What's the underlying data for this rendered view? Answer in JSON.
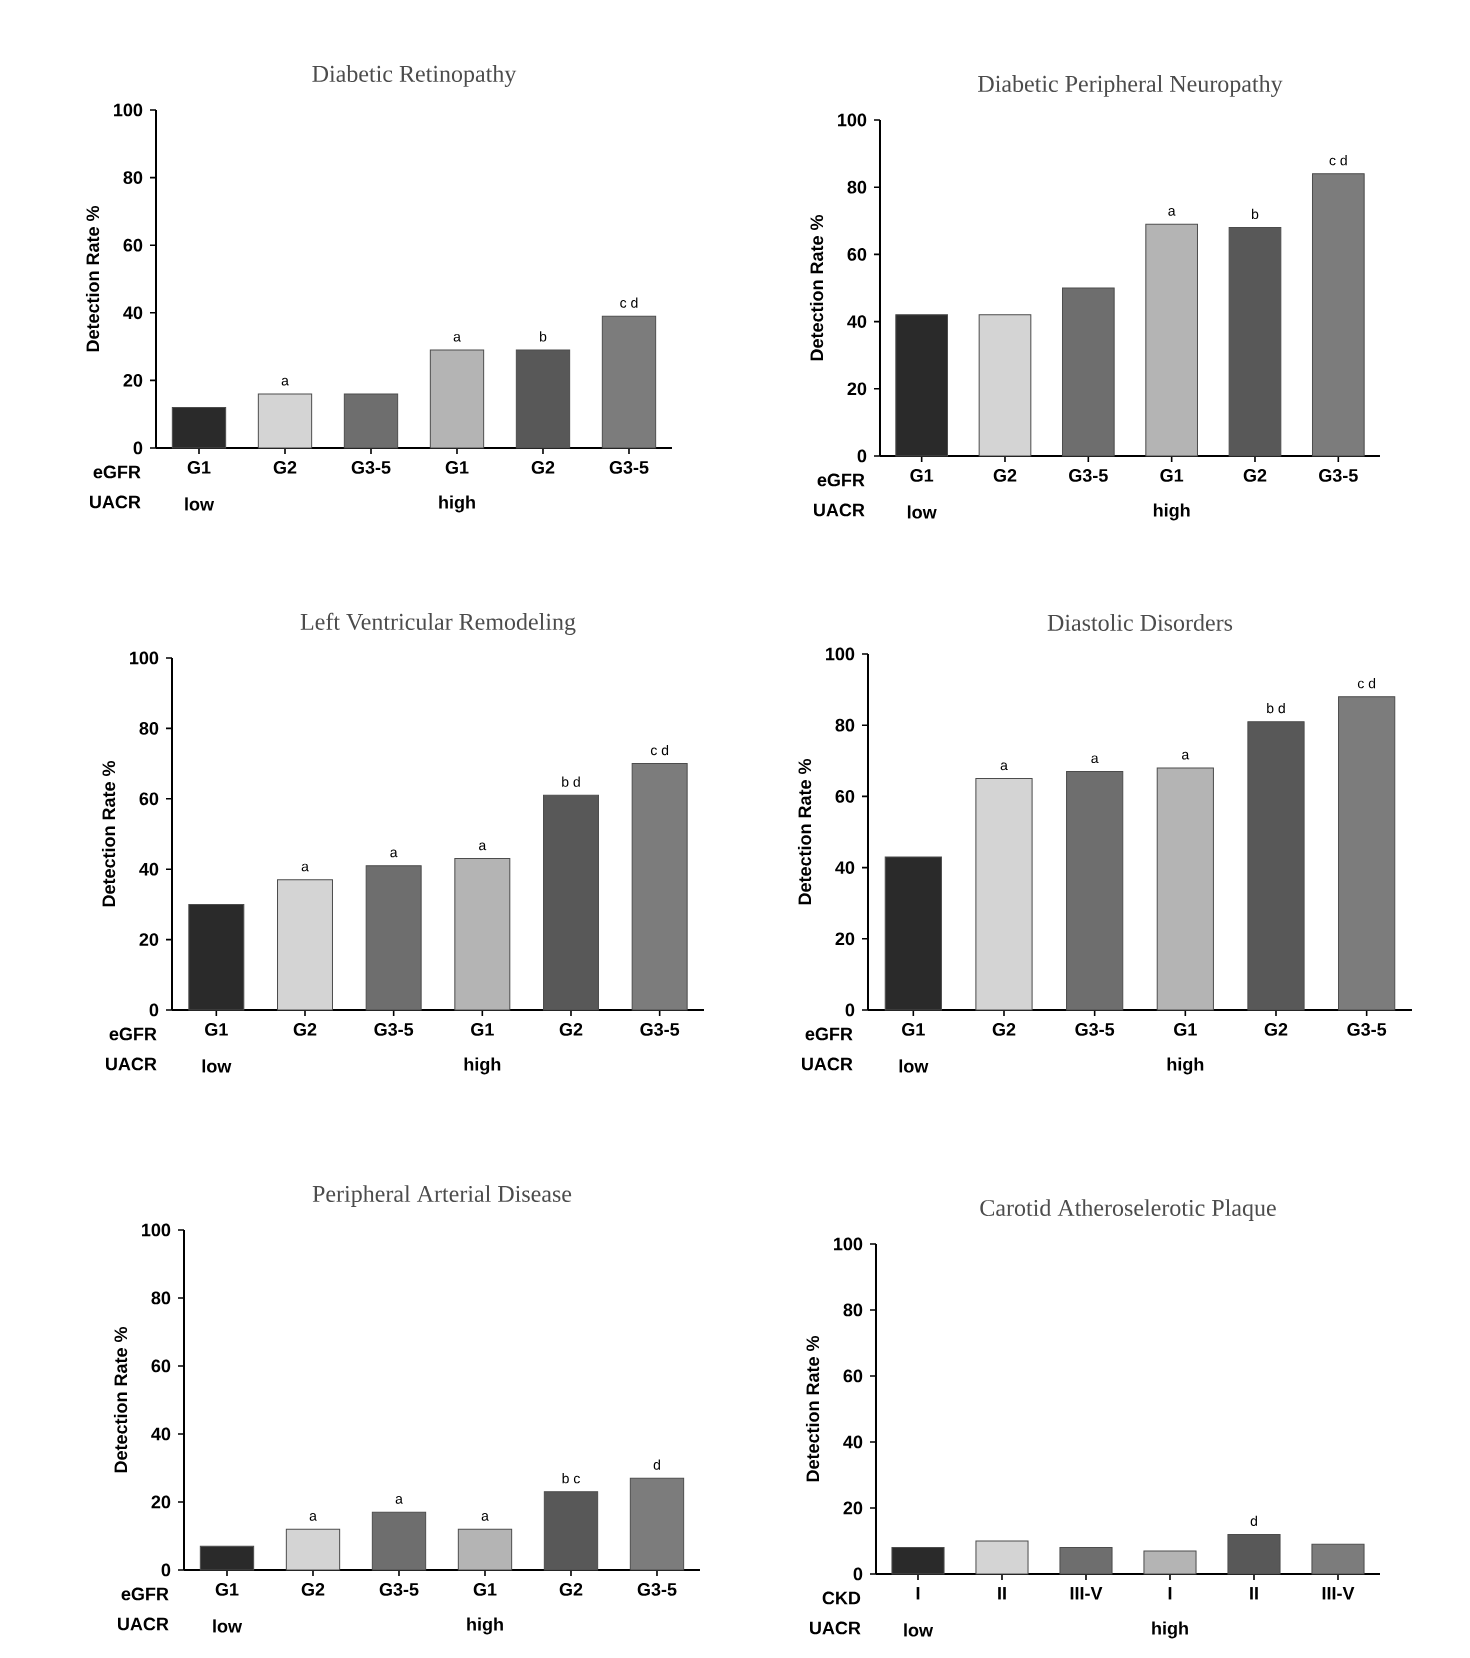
{
  "chart_data": [
    {
      "type": "bar",
      "title": "Diabetic Retinopathy",
      "xlabel": "eGFR",
      "ylabel": "Detection Rate %",
      "categories": [
        "G1",
        "G2",
        "G3-5",
        "G1",
        "G2",
        "G3-5"
      ],
      "values": [
        12,
        16,
        16,
        29,
        29,
        39
      ],
      "value_labels": [
        null,
        "a",
        null,
        "a",
        "b",
        "c d"
      ],
      "colors": [
        "#2a2a2a",
        "#d4d4d4",
        "#6e6e6e",
        "#b4b4b4",
        "#585858",
        "#7c7c7c"
      ],
      "ylim": [
        0,
        100
      ],
      "yticks": [
        0,
        20,
        40,
        60,
        80,
        100
      ],
      "annotations": [
        "UACR",
        "low",
        "high"
      ]
    },
    {
      "type": "bar",
      "title": "Diabetic Peripheral Neuropathy",
      "xlabel": "eGFR",
      "ylabel": "Detection Rate %",
      "categories": [
        "G1",
        "G2",
        "G3-5",
        "G1",
        "G2",
        "G3-5"
      ],
      "values": [
        42,
        42,
        50,
        69,
        68,
        84
      ],
      "value_labels": [
        null,
        null,
        null,
        "a",
        "b",
        "c d"
      ],
      "colors": [
        "#2a2a2a",
        "#d4d4d4",
        "#6e6e6e",
        "#b4b4b4",
        "#585858",
        "#7c7c7c"
      ],
      "ylim": [
        0,
        100
      ],
      "yticks": [
        0,
        20,
        40,
        60,
        80,
        100
      ],
      "annotations": [
        "UACR",
        "low",
        "high"
      ]
    },
    {
      "type": "bar",
      "title": "Left Ventricular Remodeling",
      "xlabel": "eGFR",
      "ylabel": "Detection Rate %",
      "categories": [
        "G1",
        "G2",
        "G3-5",
        "G1",
        "G2",
        "G3-5"
      ],
      "values": [
        30,
        37,
        41,
        43,
        61,
        70
      ],
      "value_labels": [
        null,
        "a",
        "a",
        "a",
        "b d",
        "c d"
      ],
      "colors": [
        "#2a2a2a",
        "#d4d4d4",
        "#6e6e6e",
        "#b4b4b4",
        "#585858",
        "#7c7c7c"
      ],
      "ylim": [
        0,
        100
      ],
      "yticks": [
        0,
        20,
        40,
        60,
        80,
        100
      ],
      "annotations": [
        "UACR",
        "low",
        "high"
      ]
    },
    {
      "type": "bar",
      "title": "Diastolic Disorders",
      "xlabel": "eGFR",
      "ylabel": "Detection Rate %",
      "categories": [
        "G1",
        "G2",
        "G3-5",
        "G1",
        "G2",
        "G3-5"
      ],
      "values": [
        43,
        65,
        67,
        68,
        81,
        88
      ],
      "value_labels": [
        null,
        "a",
        "a",
        "a",
        "b d",
        "c d"
      ],
      "colors": [
        "#2a2a2a",
        "#d4d4d4",
        "#6e6e6e",
        "#b4b4b4",
        "#585858",
        "#7c7c7c"
      ],
      "ylim": [
        0,
        100
      ],
      "yticks": [
        0,
        20,
        40,
        60,
        80,
        100
      ],
      "annotations": [
        "UACR",
        "low",
        "high"
      ]
    },
    {
      "type": "bar",
      "title": "Peripheral Arterial Disease",
      "xlabel": "eGFR",
      "ylabel": "Detection Rate %",
      "categories": [
        "G1",
        "G2",
        "G3-5",
        "G1",
        "G2",
        "G3-5"
      ],
      "values": [
        7,
        12,
        17,
        12,
        23,
        27
      ],
      "value_labels": [
        null,
        "a",
        "a",
        "a",
        "b c",
        "d"
      ],
      "colors": [
        "#2a2a2a",
        "#d4d4d4",
        "#6e6e6e",
        "#b4b4b4",
        "#585858",
        "#7c7c7c"
      ],
      "ylim": [
        0,
        100
      ],
      "yticks": [
        0,
        20,
        40,
        60,
        80,
        100
      ],
      "annotations": [
        "UACR",
        "low",
        "high"
      ]
    },
    {
      "type": "bar",
      "title": "Carotid Atheroselerotic Plaque",
      "xlabel": "CKD",
      "ylabel": "Detection Rate %",
      "categories": [
        "I",
        "II",
        "III-V",
        "I",
        "II",
        "III-V"
      ],
      "values": [
        8,
        10,
        8,
        7,
        12,
        9
      ],
      "value_labels": [
        null,
        null,
        null,
        null,
        "d",
        null
      ],
      "colors": [
        "#2a2a2a",
        "#d4d4d4",
        "#6e6e6e",
        "#b4b4b4",
        "#585858",
        "#7c7c7c"
      ],
      "ylim": [
        0,
        100
      ],
      "yticks": [
        0,
        20,
        40,
        60,
        80,
        100
      ],
      "annotations": [
        "UACR",
        "low",
        "high"
      ]
    }
  ]
}
